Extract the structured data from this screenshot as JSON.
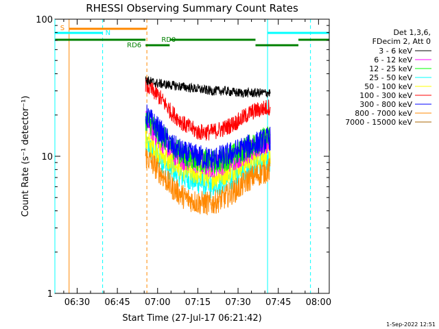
{
  "chart_data": {
    "type": "line",
    "title": "RHESSI Observing Summary Count Rates",
    "xlabel": "Start Time (27-Jul-17 06:21:42)",
    "ylabel": "Count Rate (s⁻¹ detector⁻¹)",
    "yscale": "log",
    "ylim": [
      1,
      100
    ],
    "xlim_minutes": [
      381.7,
      484.0
    ],
    "x_tick_labels": [
      "06:30",
      "06:45",
      "07:00",
      "07:15",
      "07:30",
      "07:45",
      "08:00"
    ],
    "x_tick_minutes": [
      390,
      405,
      420,
      435,
      450,
      465,
      480
    ],
    "y_tick_labels": [
      "1",
      "10",
      "100"
    ],
    "y_tick_values": [
      1,
      10,
      100
    ],
    "legend_position": "right",
    "legend_header": [
      "Det 1,3,6,",
      "FDecim 2, Att 0"
    ],
    "data_start_minute": 415.5,
    "data_end_minute": 462.0,
    "series": [
      {
        "name": "3 - 6 keV",
        "color": "#000000",
        "t": [
          415.5,
          420,
          425,
          430,
          435,
          440,
          445,
          450,
          455,
          462
        ],
        "v": [
          36,
          34,
          33,
          32,
          31,
          30,
          30,
          29,
          29,
          29
        ]
      },
      {
        "name": "6 - 12 keV",
        "color": "#ff00ff",
        "t": [
          415.5,
          420,
          425,
          430,
          435,
          440,
          445,
          450,
          455,
          462
        ],
        "v": [
          18,
          14,
          11,
          9.5,
          9,
          8.5,
          9,
          10,
          11,
          13
        ]
      },
      {
        "name": "12 - 25 keV",
        "color": "#00ff00",
        "t": [
          415.5,
          420,
          425,
          430,
          435,
          440,
          445,
          450,
          455,
          462
        ],
        "v": [
          19,
          15,
          12,
          10,
          9.5,
          9,
          9.5,
          10.5,
          12,
          14
        ]
      },
      {
        "name": "25 - 50 keV",
        "color": "#00ffff",
        "t": [
          415.5,
          420,
          425,
          430,
          435,
          440,
          445,
          450,
          455,
          462
        ],
        "v": [
          12,
          10,
          8,
          7,
          6.5,
          6,
          6.5,
          7.5,
          8.5,
          9.5
        ]
      },
      {
        "name": "50 - 100 keV",
        "color": "#ffff00",
        "t": [
          415.5,
          420,
          425,
          430,
          435,
          440,
          445,
          450,
          455,
          462
        ],
        "v": [
          13,
          11,
          9,
          8,
          7.5,
          7,
          7.5,
          8.5,
          9.5,
          10.5
        ]
      },
      {
        "name": "100 - 300 keV",
        "color": "#ff0000",
        "t": [
          415.5,
          420,
          425,
          430,
          435,
          440,
          445,
          450,
          455,
          462
        ],
        "v": [
          33,
          28,
          21,
          17,
          15,
          15,
          16,
          18,
          21,
          23
        ]
      },
      {
        "name": "300 - 800 keV",
        "color": "#0000ff",
        "t": [
          415.5,
          420,
          425,
          430,
          435,
          440,
          445,
          450,
          455,
          462
        ],
        "v": [
          20,
          16,
          12,
          10.5,
          10,
          9.5,
          10,
          11,
          12,
          13.5
        ]
      },
      {
        "name": "800 - 7000 keV",
        "color": "#ff8800",
        "t": [
          415.5,
          420,
          425,
          430,
          435,
          440,
          445,
          450,
          455,
          462
        ],
        "v": [
          10,
          8,
          6,
          5,
          4.6,
          4.5,
          5,
          5.8,
          7,
          8
        ]
      },
      {
        "name": "7000 - 15000 keV",
        "color": "#aa6600",
        "t": [],
        "v": []
      }
    ],
    "annotations": {
      "saa": {
        "label": "S",
        "color": "#ff8800",
        "start": 387.0,
        "end": 416.0
      },
      "night": {
        "label": "N",
        "color": "#00ffff",
        "intervals": [
          [
            381.7,
            399.5
          ],
          [
            461.0,
            484.0
          ]
        ]
      },
      "decimation": {
        "color": "#008000",
        "segments": [
          {
            "start": 381.7,
            "end": 415.5,
            "level": "upper"
          },
          {
            "start": 415.5,
            "end": 424.5,
            "level": "lower",
            "label": "RD6"
          },
          {
            "start": 424.5,
            "end": 456.5,
            "level": "upper",
            "label": "RD0"
          },
          {
            "start": 456.5,
            "end": 472.5,
            "level": "lower"
          },
          {
            "start": 472.5,
            "end": 484.0,
            "level": "upper"
          }
        ]
      },
      "vlines": [
        {
          "minute": 387.0,
          "color": "#ff8800",
          "style": "solid"
        },
        {
          "minute": 399.5,
          "color": "#00ffff",
          "style": "dashed"
        },
        {
          "minute": 416.0,
          "color": "#ff8800",
          "style": "dashed"
        },
        {
          "minute": 461.0,
          "color": "#00ffff",
          "style": "solid"
        },
        {
          "minute": 477.0,
          "color": "#00ffff",
          "style": "dashed"
        }
      ]
    }
  },
  "footer": "1-Sep-2022 12:51"
}
